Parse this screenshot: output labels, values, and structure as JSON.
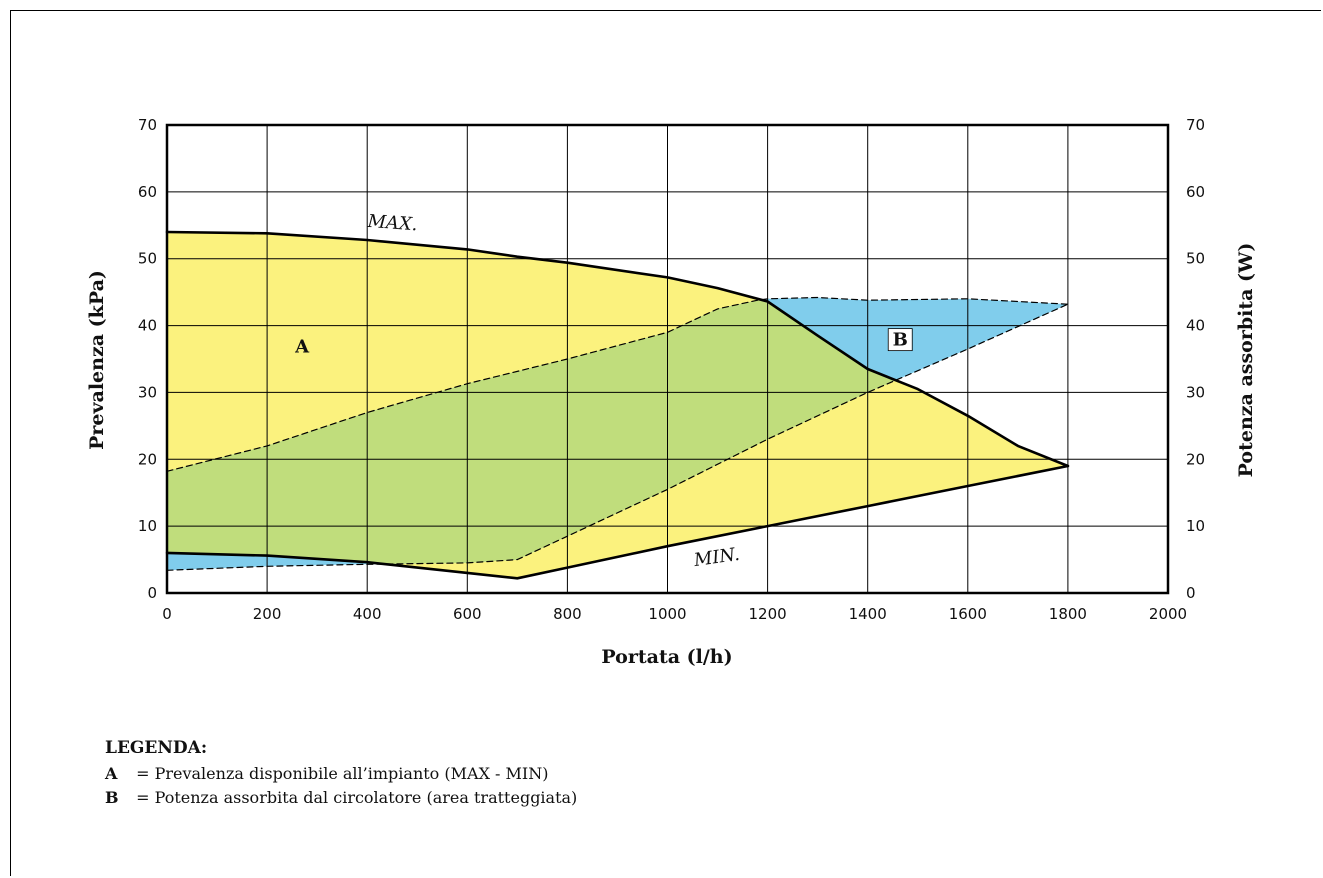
{
  "chart_data": {
    "type": "area",
    "x_axis": {
      "label": "Portata (l/h)",
      "range": [
        0,
        2000
      ],
      "ticks": [
        0,
        200,
        400,
        600,
        800,
        1000,
        1200,
        1400,
        1600,
        1800,
        2000
      ]
    },
    "y_axis_left": {
      "label": "Prevalenza (kPa)",
      "range": [
        0,
        70
      ],
      "ticks": [
        0,
        10,
        20,
        30,
        40,
        50,
        60,
        70
      ]
    },
    "y_axis_right": {
      "label": "Potenza assorbita (W)",
      "range": [
        0,
        70
      ],
      "ticks": [
        0,
        10,
        20,
        30,
        40,
        50,
        60,
        70
      ]
    },
    "grid": true,
    "series": [
      {
        "name": "MAX.",
        "axis": "left",
        "line": "solid",
        "points": [
          [
            0,
            54
          ],
          [
            200,
            53.8
          ],
          [
            400,
            52.8
          ],
          [
            600,
            51.4
          ],
          [
            700,
            50.3
          ],
          [
            800,
            49.4
          ],
          [
            1000,
            47.2
          ],
          [
            1100,
            45.6
          ],
          [
            1200,
            43.6
          ],
          [
            1300,
            38.5
          ],
          [
            1400,
            33.5
          ],
          [
            1500,
            30.5
          ],
          [
            1600,
            26.5
          ],
          [
            1700,
            22
          ],
          [
            1800,
            19
          ]
        ]
      },
      {
        "name": "MIN.",
        "axis": "left",
        "line": "solid",
        "points": [
          [
            0,
            6
          ],
          [
            200,
            5.6
          ],
          [
            400,
            4.6
          ],
          [
            600,
            3
          ],
          [
            700,
            2.2
          ],
          [
            800,
            3.8
          ],
          [
            1000,
            7
          ],
          [
            1200,
            10
          ],
          [
            1400,
            13
          ],
          [
            1600,
            16
          ],
          [
            1800,
            19
          ]
        ]
      },
      {
        "axis": "right",
        "line": "dashed",
        "points": [
          [
            0,
            18.2
          ],
          [
            200,
            22
          ],
          [
            400,
            27
          ],
          [
            600,
            31.3
          ],
          [
            800,
            35
          ],
          [
            1000,
            39
          ],
          [
            1100,
            42.5
          ],
          [
            1180,
            43.8
          ],
          [
            1200,
            44
          ],
          [
            1300,
            44.2
          ],
          [
            1400,
            43.8
          ],
          [
            1600,
            44
          ],
          [
            1800,
            43.2
          ]
        ]
      },
      {
        "axis": "right",
        "line": "dashed",
        "points": [
          [
            0,
            3.4
          ],
          [
            200,
            4
          ],
          [
            400,
            4.3
          ],
          [
            600,
            4.5
          ],
          [
            700,
            5
          ],
          [
            800,
            8.5
          ],
          [
            1000,
            15.5
          ],
          [
            1200,
            23
          ],
          [
            1400,
            30
          ],
          [
            1600,
            36.5
          ],
          [
            1800,
            43.2
          ]
        ]
      }
    ],
    "areas": [
      {
        "label": "A",
        "at": [
          270,
          36
        ]
      },
      {
        "label": "B",
        "at": [
          1465,
          37
        ]
      }
    ],
    "curve_labels": [
      {
        "text": "MAX.",
        "at": [
          450,
          54.5
        ]
      },
      {
        "text": "MIN.",
        "at": [
          1100,
          4.5
        ]
      }
    ],
    "colors": {
      "yellow": "#fbf27e",
      "green": "#c0dd7c",
      "blue": "#80cdec",
      "grid": "#000000"
    }
  },
  "legend": {
    "title": "LEGENDA:",
    "items": [
      {
        "key": "A",
        "text": "= Prevalenza disponibile all’impianto (MAX - MIN)"
      },
      {
        "key": "B",
        "text": "= Potenza assorbita dal circolatore (area tratteggiata)"
      }
    ]
  }
}
